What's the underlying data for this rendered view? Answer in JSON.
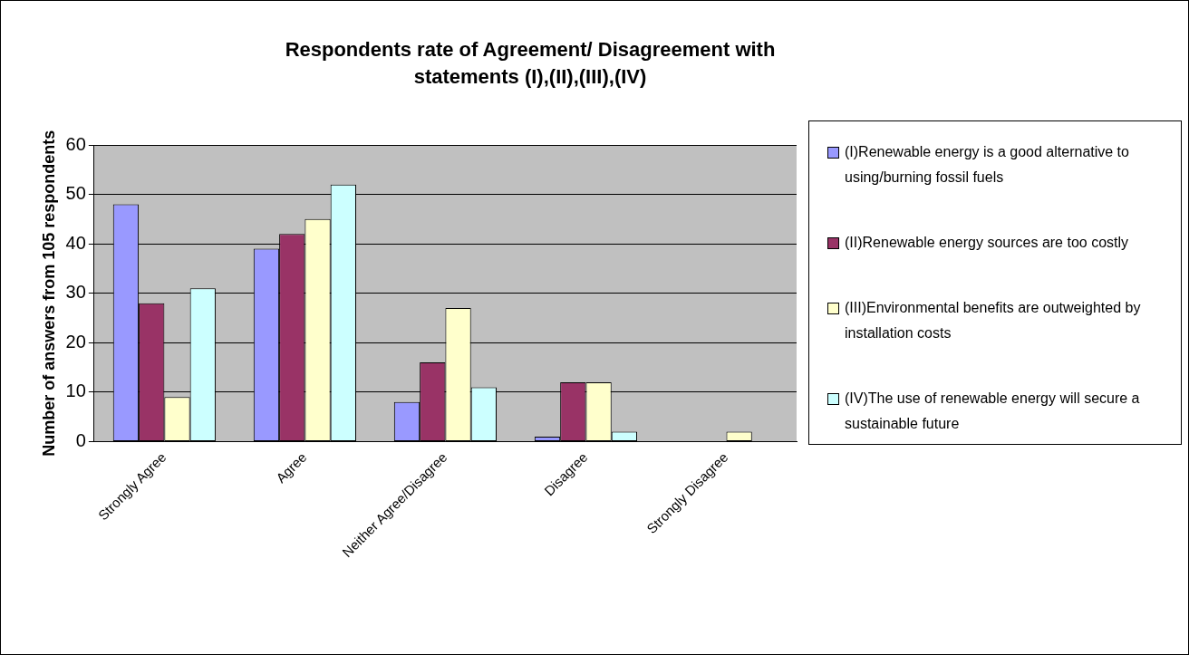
{
  "chart_data": {
    "type": "bar",
    "title": "Respondents rate of Agreement/ Disagreement with statements (I),(II),(III),(IV)",
    "ylabel": "Number of answers from 105 respondents",
    "categories": [
      "Strongly Agree",
      "Agree",
      "Neither Agree/Disagree",
      "Disagree",
      "Strongly Disagree"
    ],
    "series": [
      {
        "name": "(I)Renewable energy is a good alternative to using/burning fossil fuels",
        "color": "#9999ff",
        "values": [
          48,
          39,
          8,
          1,
          0
        ]
      },
      {
        "name": "(II)Renewable energy sources are too costly",
        "color": "#993366",
        "values": [
          28,
          42,
          16,
          12,
          0
        ]
      },
      {
        "name": "(III)Environmental benefits are outweighted by installation costs",
        "color": "#ffffcc",
        "values": [
          9,
          45,
          27,
          12,
          2
        ]
      },
      {
        "name": "(IV)The use of renewable energy will secure a sustainable future",
        "color": "#ccffff",
        "values": [
          31,
          52,
          11,
          2,
          0
        ]
      }
    ],
    "ylim": [
      0,
      60
    ],
    "yticks": [
      0,
      10,
      20,
      30,
      40,
      50,
      60
    ],
    "grid": "y",
    "legend": "right"
  }
}
